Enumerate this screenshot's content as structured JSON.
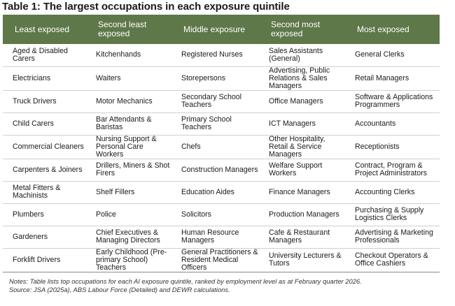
{
  "title": "Table 1: The largest occupations in each exposure quintile",
  "table": {
    "headers": [
      "Least exposed",
      "Second least exposed",
      "Middle exposure",
      "Second most exposed",
      "Most exposed"
    ],
    "rows": [
      [
        "Aged & Disabled Carers",
        "Kitchenhands",
        "Registered Nurses",
        "Sales Assistants (General)",
        "General Clerks"
      ],
      [
        "Electricians",
        "Waiters",
        "Storepersons",
        "Advertising, Public Relations & Sales Managers",
        "Retail Managers"
      ],
      [
        "Truck Drivers",
        "Motor Mechanics",
        "Secondary School Teachers",
        "Office Managers",
        "Software & Applications Programmers"
      ],
      [
        "Child Carers",
        "Bar Attendants & Baristas",
        "Primary School Teachers",
        "ICT Managers",
        "Accountants"
      ],
      [
        "Commercial Cleaners",
        "Nursing Support & Personal Care Workers",
        "Chefs",
        "Other Hospitality, Retail & Service Managers",
        "Receptionists"
      ],
      [
        "Carpenters & Joiners",
        "Drillers, Miners & Shot Firers",
        "Construction Managers",
        "Welfare Support Workers",
        "Contract, Program & Project Administrators"
      ],
      [
        "Metal Fitters & Machinists",
        "Shelf Fillers",
        "Education Aides",
        "Finance Managers",
        "Accounting Clerks"
      ],
      [
        "Plumbers",
        "Police",
        "Solicitors",
        "Production Managers",
        "Purchasing & Supply Logistics Clerks"
      ],
      [
        "Gardeners",
        "Chief Executives & Managing Directors",
        "Human Resource Managers",
        "Cafe & Restaurant Managers",
        "Advertising & Marketing Professionals"
      ],
      [
        "Forklift Drivers",
        "Early Childhood (Pre-primary School) Teachers",
        "General Practitioners & Resident Medical Officers",
        "University Lecturers & Tutors",
        "Checkout Operators & Office Cashiers"
      ]
    ]
  },
  "notes": "Notes: Table lists top occupations for each AI exposure quintile, ranked by employment level as at February quarter 2026.",
  "source": "Source: JSA (2025a), ABS Labour Force (Detailed) and DEWR calculations.",
  "colors": {
    "header_bg": "#5e7849",
    "header_text": "#ffffff",
    "row_divider": "#cfcfcf"
  }
}
